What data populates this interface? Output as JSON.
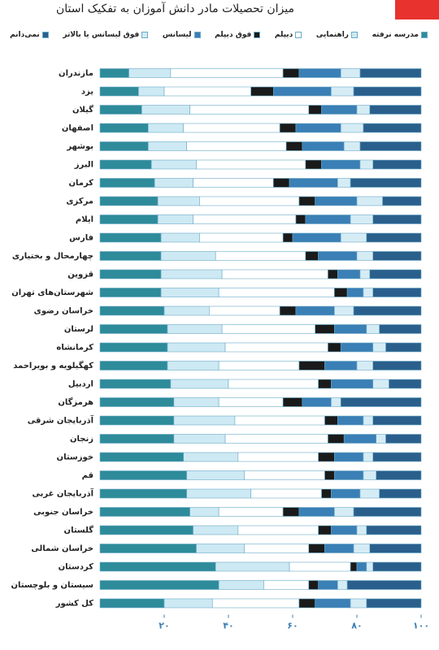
{
  "chart_data": {
    "type": "stacked_bar_horizontal",
    "title": "میزان تحصیلات مادر دانش آموزان به تفکیک استان",
    "categories": [
      "مازندران",
      "یزد",
      "گیلان",
      "اصفهان",
      "بوشهر",
      "البرز",
      "کرمان",
      "مرکزی",
      "ایلام",
      "فارس",
      "چهارمحال و بختیاری",
      "قزوین",
      "شهرستان‌های تهران",
      "خراسان رضوی",
      "لرستان",
      "کرمانشاه",
      "کهگیلویه و بویراحمد",
      "اردبیل",
      "هرمزگان",
      "آذربایجان شرقی",
      "زنجان",
      "خوزستان",
      "قم",
      "آذربایجان غربی",
      "خراسان جنوبی",
      "گلستان",
      "خراسان شمالی",
      "کردستان",
      "سیستان و بلوچستان",
      "کل کشور"
    ],
    "series": [
      {
        "name": "مدرسه نرفته",
        "color": "#2e8b9a",
        "values": [
          9,
          12,
          13,
          15,
          15,
          16,
          17,
          18,
          18,
          19,
          19,
          19,
          19,
          20,
          21,
          21,
          21,
          22,
          23,
          23,
          23,
          26,
          27,
          27,
          28,
          29,
          30,
          36,
          37,
          20
        ]
      },
      {
        "name": "راهنمایی",
        "color": "#cde9f3",
        "values": [
          13,
          8,
          15,
          11,
          12,
          14,
          12,
          13,
          11,
          12,
          17,
          19,
          18,
          14,
          17,
          18,
          16,
          18,
          14,
          19,
          16,
          17,
          18,
          20,
          9,
          14,
          15,
          23,
          14,
          15
        ]
      },
      {
        "name": "دیپلم",
        "color": "#ffffff",
        "values": [
          35,
          27,
          37,
          30,
          31,
          34,
          25,
          31,
          32,
          26,
          28,
          33,
          36,
          22,
          29,
          32,
          25,
          28,
          20,
          28,
          32,
          25,
          25,
          22,
          20,
          25,
          20,
          19,
          14,
          27
        ]
      },
      {
        "name": "فوق دیپلم",
        "color": "#1a1a1a",
        "values": [
          5,
          7,
          4,
          5,
          5,
          5,
          5,
          5,
          3,
          3,
          4,
          3,
          4,
          5,
          6,
          4,
          8,
          4,
          6,
          4,
          5,
          5,
          3,
          3,
          5,
          4,
          5,
          2,
          3,
          5
        ]
      },
      {
        "name": "لیسانس",
        "color": "#3a7fb5",
        "values": [
          13,
          18,
          11,
          14,
          13,
          12,
          15,
          13,
          14,
          15,
          12,
          7,
          5,
          12,
          10,
          10,
          10,
          13,
          9,
          8,
          10,
          9,
          9,
          9,
          11,
          8,
          9,
          3,
          6,
          11
        ]
      },
      {
        "name": "فوق لیسانس یا بالاتر",
        "color": "#d6ecf5",
        "values": [
          6,
          7,
          4,
          7,
          5,
          4,
          4,
          8,
          7,
          8,
          5,
          3,
          3,
          6,
          4,
          4,
          5,
          5,
          3,
          3,
          3,
          3,
          4,
          6,
          6,
          3,
          5,
          2,
          3,
          5
        ]
      },
      {
        "name": "نمی‌دانم",
        "color": "#2a5f8c",
        "values": [
          19,
          21,
          16,
          18,
          19,
          15,
          22,
          12,
          15,
          17,
          15,
          16,
          15,
          21,
          13,
          11,
          15,
          10,
          25,
          15,
          11,
          15,
          14,
          13,
          21,
          17,
          16,
          15,
          23,
          17
        ]
      }
    ],
    "xlim": [
      0,
      100
    ],
    "xticks": [
      {
        "value": 20,
        "label": "۲۰"
      },
      {
        "value": 40,
        "label": "۴۰"
      },
      {
        "value": 60,
        "label": "۶۰"
      },
      {
        "value": 80,
        "label": "۸۰"
      },
      {
        "value": 100,
        "label": "۱۰۰"
      }
    ]
  }
}
